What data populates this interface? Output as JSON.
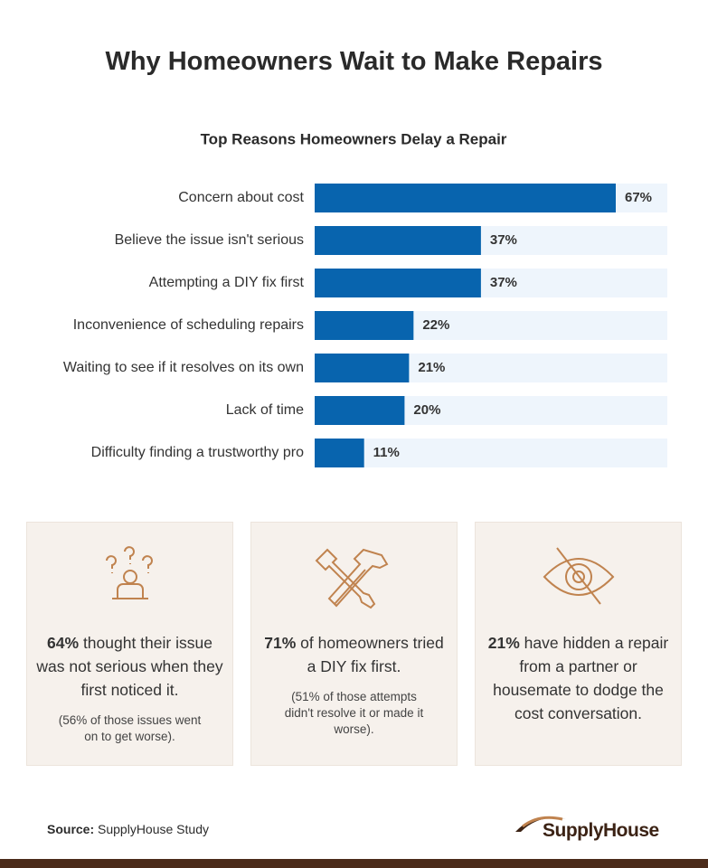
{
  "title": "Why Homeowners Wait to Make Repairs",
  "chart_data": {
    "type": "bar",
    "orientation": "horizontal",
    "title": "Top Reasons Homeowners Delay a Repair",
    "categories": [
      "Concern about cost",
      "Believe the issue isn't serious",
      "Attempting a DIY fix first",
      "Inconvenience of scheduling repairs",
      "Waiting to see if it resolves on its own",
      "Lack of time",
      "Difficulty finding a trustworthy pro"
    ],
    "values": [
      67,
      37,
      37,
      22,
      21,
      20,
      11
    ],
    "value_labels": [
      "67%",
      "37%",
      "37%",
      "22%",
      "21%",
      "20%",
      "11%"
    ],
    "color": "#0864ae"
  },
  "cards": [
    {
      "highlight": "64%",
      "text": "thought their issue was not serious when they first noticed it.",
      "note": "(56% of those issues went on to get worse)."
    },
    {
      "highlight": "71%",
      "text": "of homeowners tried a DIY fix first.",
      "note": "(51% of those attempts didn't resolve it or made it worse)."
    },
    {
      "highlight": "21%",
      "text": "have hidden a repair from a partner or housemate to dodge the cost conversation."
    }
  ],
  "source": {
    "label": "Source:",
    "text": "SupplyHouse Study"
  },
  "logo": "SupplyHouse"
}
